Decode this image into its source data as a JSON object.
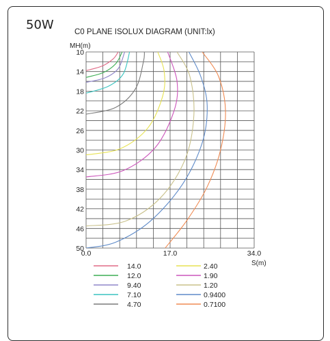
{
  "wattage_label": "50W",
  "chart_data": {
    "type": "line",
    "title": "C0 PLANE ISOLUX DIAGRAM (UNIT:lx)",
    "xlabel": "S(m)",
    "ylabel": "MH(m)",
    "x_ticks": [
      "0.0",
      "17.0",
      "34.0"
    ],
    "y_ticks": [
      "10",
      "14",
      "18",
      "22",
      "26",
      "30",
      "34",
      "38",
      "42",
      "46",
      "50"
    ],
    "xlim": [
      0,
      34
    ],
    "ylim": [
      10,
      50
    ],
    "y_inverted": true,
    "grid": true,
    "legend_position": "bottom",
    "series": [
      {
        "name": "14.0",
        "color": "#e06a86",
        "points": [
          [
            0,
            13.8
          ],
          [
            3.2,
            12.9
          ],
          [
            5.5,
            11.4
          ],
          [
            6.5,
            10
          ]
        ]
      },
      {
        "name": "12.0",
        "color": "#3cae54",
        "points": [
          [
            0,
            15.2
          ],
          [
            3.5,
            14.2
          ],
          [
            6,
            12.4
          ],
          [
            7.3,
            10
          ]
        ]
      },
      {
        "name": "9.40",
        "color": "#8e86c8",
        "points": [
          [
            0,
            16.2
          ],
          [
            3.8,
            15.3
          ],
          [
            6.5,
            13.4
          ],
          [
            7.8,
            10
          ]
        ]
      },
      {
        "name": "7.10",
        "color": "#39c4c0",
        "points": [
          [
            0,
            18.4
          ],
          [
            4.5,
            17
          ],
          [
            7.5,
            14.5
          ],
          [
            8.8,
            10
          ]
        ]
      },
      {
        "name": "4.70",
        "color": "#7a7a7a",
        "points": [
          [
            0,
            22.7
          ],
          [
            6,
            21.3
          ],
          [
            10,
            17.5
          ],
          [
            11.6,
            12
          ],
          [
            11.8,
            10
          ]
        ]
      },
      {
        "name": "2.40",
        "color": "#e7e252",
        "points": [
          [
            0,
            31
          ],
          [
            7,
            29.7
          ],
          [
            12.5,
            25.5
          ],
          [
            15.5,
            19
          ],
          [
            15.8,
            14
          ],
          [
            14.5,
            10
          ]
        ]
      },
      {
        "name": "1.90",
        "color": "#cc55bb",
        "points": [
          [
            0,
            35.5
          ],
          [
            7.5,
            34.2
          ],
          [
            14,
            29.5
          ],
          [
            17.8,
            22
          ],
          [
            18.4,
            16
          ],
          [
            16.5,
            10
          ]
        ]
      },
      {
        "name": "1.20",
        "color": "#c8c08a",
        "points": [
          [
            0,
            45.5
          ],
          [
            8,
            44.5
          ],
          [
            15,
            39.8
          ],
          [
            20,
            32
          ],
          [
            21.8,
            23
          ],
          [
            21,
            15
          ],
          [
            18.4,
            10
          ]
        ]
      },
      {
        "name": "0.9400",
        "color": "#5e8ac8",
        "points": [
          [
            0,
            50
          ],
          [
            6,
            48.8
          ],
          [
            13,
            44.5
          ],
          [
            19.5,
            37
          ],
          [
            23.5,
            28.5
          ],
          [
            24.5,
            21
          ],
          [
            23.2,
            15
          ],
          [
            20.8,
            10
          ]
        ]
      },
      {
        "name": "0.7100",
        "color": "#ef8a52",
        "points": [
          [
            16,
            50
          ],
          [
            20.5,
            44.2
          ],
          [
            24.5,
            37.5
          ],
          [
            27.2,
            30
          ],
          [
            28.2,
            22
          ],
          [
            26.8,
            15
          ],
          [
            23.5,
            10
          ]
        ]
      }
    ]
  }
}
